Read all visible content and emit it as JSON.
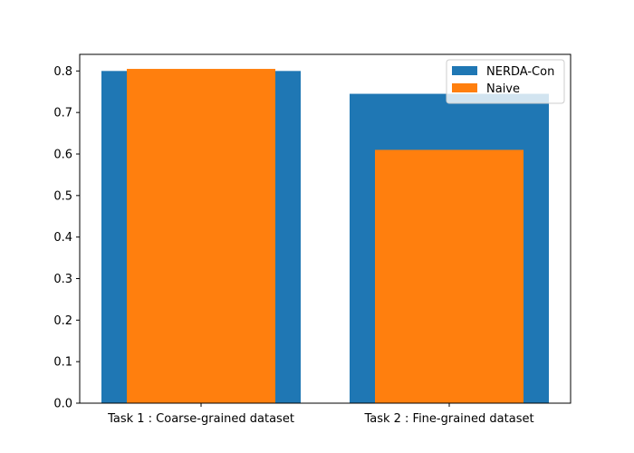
{
  "chart_data": {
    "type": "bar",
    "categories": [
      "Task 1 : Coarse-grained dataset",
      "Task 2 : Fine-grained dataset"
    ],
    "series": [
      {
        "name": "NERDA-Con",
        "values": [
          0.8,
          0.745
        ],
        "color": "#1f77b4"
      },
      {
        "name": "Naive",
        "values": [
          0.805,
          0.61
        ],
        "color": "#ff7f0e"
      }
    ],
    "ylim": [
      0,
      0.84
    ],
    "yticks": [
      "0.0",
      "0.1",
      "0.2",
      "0.3",
      "0.4",
      "0.5",
      "0.6",
      "0.7",
      "0.8"
    ],
    "legend_position": "top-right",
    "grid": false
  }
}
